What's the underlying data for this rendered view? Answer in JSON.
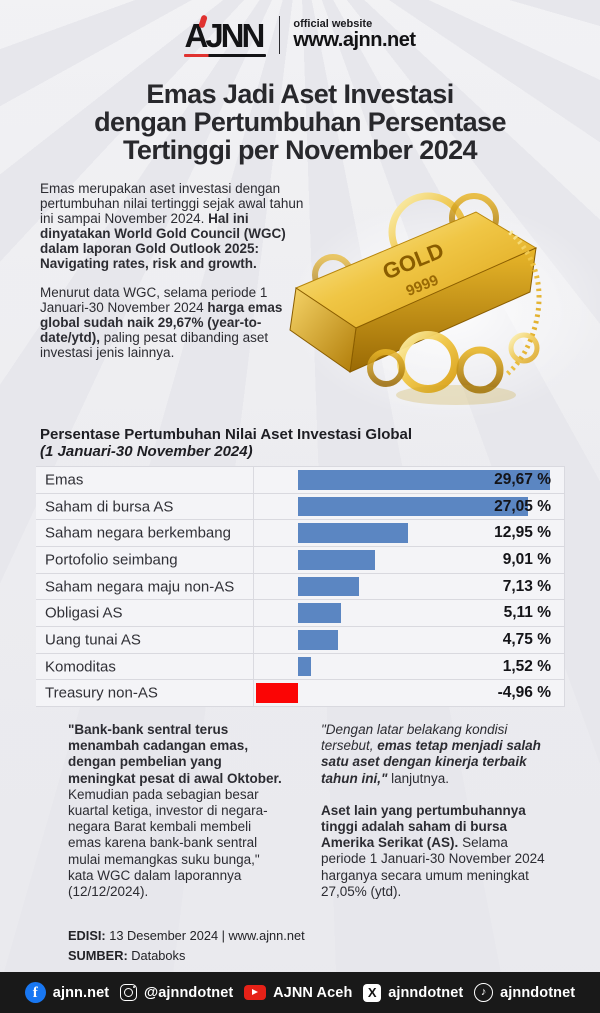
{
  "header": {
    "logo_text": "AJNN",
    "official_label": "official website",
    "site_url": "www.ajnn.net"
  },
  "title_lines": [
    "Emas Jadi Aset Investasi",
    "dengan Pertumbuhan Persentase",
    "Tertinggi per November 2024"
  ],
  "intro": {
    "p1": [
      {
        "s": "n",
        "t": "Emas merupakan aset investasi dengan pertumbuhan nilai tertinggi sejak awal tahun ini sampai November 2024. "
      },
      {
        "s": "b",
        "t": "Hal ini dinyatakan World Gold Council (WGC) dalam laporan Gold Outlook 2025: Navigating rates, risk and growth."
      }
    ],
    "p2": [
      {
        "s": "n",
        "t": "Menurut data WGC, selama periode 1 Januari-30 November 2024 "
      },
      {
        "s": "b",
        "t": "harga emas global sudah naik 29,67% (year-to-date/ytd),"
      },
      {
        "s": "n",
        "t": " paling pesat dibanding aset investasi jenis lainnya."
      }
    ]
  },
  "gold": {
    "text1": "GOLD",
    "text2": "9999"
  },
  "chart_data": {
    "type": "bar",
    "orientation": "horizontal",
    "title": "Persentase Pertumbuhan Nilai Aset Investasi Global",
    "subtitle": "(1 Januari-30 November 2024)",
    "categories": [
      "Emas",
      "Saham di bursa AS",
      "Saham negara berkembang",
      "Portofolio seimbang",
      "Saham negara maju non-AS",
      "Obligasi AS",
      "Uang tunai AS",
      "Komoditas",
      "Treasury non-AS"
    ],
    "values": [
      29.67,
      27.05,
      12.95,
      9.01,
      7.13,
      5.11,
      4.75,
      1.52,
      -4.96
    ],
    "value_labels": [
      "29,67 %",
      "27,05 %",
      "12,95 %",
      "9,01 %",
      "7,13 %",
      "5,11 %",
      "4,75 %",
      "1,52 %",
      "-4,96 %"
    ],
    "unit": "%",
    "xlim": [
      -6,
      31
    ],
    "grid": true,
    "legend": "none",
    "bar_color": "#5b86c2",
    "negative_color": "#fb0505"
  },
  "quotes": {
    "left": [
      {
        "s": "b",
        "t": "\"Bank-bank sentral terus menambah cadangan emas, dengan pembelian yang meningkat pesat di awal Oktober."
      },
      {
        "s": "n",
        "t": " Kemudian pada sebagian besar kuartal ketiga, investor di negara-negara Barat kembali membeli emas karena bank-bank sentral mulai memangkas suku bunga,\" kata WGC dalam laporannya (12/12/2024)."
      }
    ],
    "right_p1": [
      {
        "s": "i",
        "t": "\"Dengan latar belakang kondisi tersebut, "
      },
      {
        "s": "bi",
        "t": "emas tetap menjadi salah satu aset dengan kinerja terbaik tahun ini,\""
      },
      {
        "s": "n",
        "t": " lanjutnya."
      }
    ],
    "right_p2": [
      {
        "s": "b",
        "t": "Aset lain yang pertumbuhannya tinggi adalah saham di bursa Amerika Serikat (AS)."
      },
      {
        "s": "n",
        "t": " Selama periode 1 Januari-30 November 2024 harganya secara umum meningkat 27,05% (ytd)."
      }
    ]
  },
  "meta": {
    "edisi": [
      {
        "s": "b",
        "t": "EDISI:"
      },
      {
        "s": "n",
        "t": " 13 Desember 2024 | www.ajnn.net"
      }
    ],
    "sumber": [
      {
        "s": "b",
        "t": "SUMBER:"
      },
      {
        "s": "n",
        "t": " Databoks"
      }
    ]
  },
  "footer": {
    "items": [
      {
        "icon": "facebook",
        "label": "ajnn.net"
      },
      {
        "icon": "instagram",
        "label": "@ajnndotnet"
      },
      {
        "icon": "youtube",
        "label": "AJNN Aceh"
      },
      {
        "icon": "x",
        "label": "ajnndotnet"
      },
      {
        "icon": "tiktok",
        "label": "ajnndotnet"
      }
    ],
    "icon_glyphs": {
      "facebook": "f",
      "x": "X",
      "tiktok": "♪"
    }
  },
  "colors": {
    "background": "#e7e7ec",
    "text_dark": "#28282c",
    "bar_blue": "#5b86c2",
    "bar_red": "#fb0505",
    "footer_bg": "#191919",
    "facebook_blue": "#1877f2",
    "youtube_red": "#e62117",
    "logo_accent_red": "#e03230"
  }
}
